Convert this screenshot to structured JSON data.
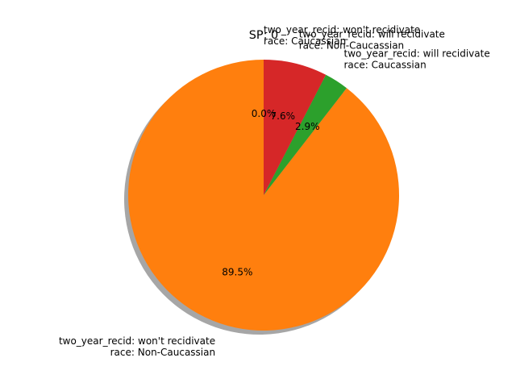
{
  "chart_data": {
    "type": "pie",
    "title": "SP: 0",
    "start_angle": 90,
    "counterclock": true,
    "shadow": true,
    "slices": [
      {
        "label_line1": "two_year_recid: won't recidivate",
        "label_line2": "race: Caucassian",
        "value": 0.0,
        "pct_label": "0.0%",
        "color": "#1f77b4"
      },
      {
        "label_line1": "two_year_recid: won't recidivate",
        "label_line2": "race: Non-Caucassian",
        "value": 89.5,
        "pct_label": "89.5%",
        "color": "#ff7f0e"
      },
      {
        "label_line1": "two_year_recid: will recidivate",
        "label_line2": "race: Caucassian",
        "value": 2.9,
        "pct_label": "2.9%",
        "color": "#2ca02c"
      },
      {
        "label_line1": "two_year_recid: will recidivate",
        "label_line2": "race: Non-Caucassian",
        "value": 7.6,
        "pct_label": "7.6%",
        "color": "#d62728"
      }
    ]
  }
}
